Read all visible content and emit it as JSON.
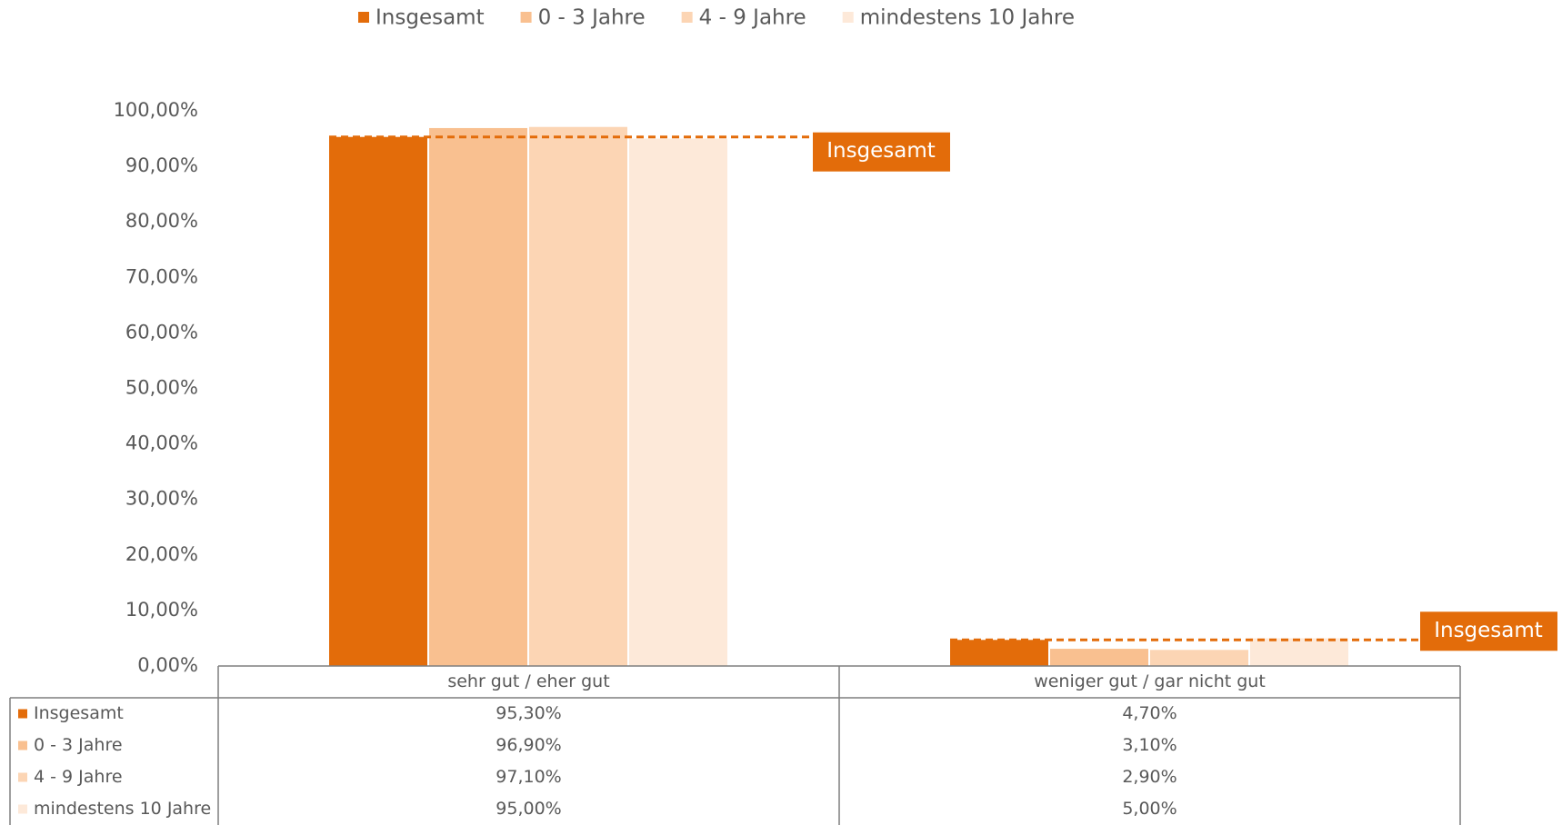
{
  "chart_data": {
    "type": "bar",
    "categories": [
      "sehr gut / eher gut",
      "weniger gut / gar nicht gut"
    ],
    "series": [
      {
        "name": "Insgesamt",
        "color": "#e36c0a",
        "values": [
          95.3,
          4.7
        ],
        "value_labels": [
          "95,30%",
          "4,70%"
        ]
      },
      {
        "name": "0 - 3 Jahre",
        "color": "#f9c090",
        "values": [
          96.9,
          3.1
        ],
        "value_labels": [
          "96,90%",
          "3,10%"
        ]
      },
      {
        "name": "4 - 9 Jahre",
        "color": "#fcd5b4",
        "values": [
          97.1,
          2.9
        ],
        "value_labels": [
          "97,10%",
          "2,90%"
        ]
      },
      {
        "name": "mindestens 10 Jahre",
        "color": "#fde9d9",
        "values": [
          95.0,
          5.0
        ],
        "value_labels": [
          "95,00%",
          "5,00%"
        ]
      }
    ],
    "ylim": [
      0,
      100
    ],
    "yticks": [
      {
        "value": 0,
        "label": "0,00%"
      },
      {
        "value": 10,
        "label": "10,00%"
      },
      {
        "value": 20,
        "label": "20,00%"
      },
      {
        "value": 30,
        "label": "30,00%"
      },
      {
        "value": 40,
        "label": "40,00%"
      },
      {
        "value": 50,
        "label": "50,00%"
      },
      {
        "value": 60,
        "label": "60,00%"
      },
      {
        "value": 70,
        "label": "70,00%"
      },
      {
        "value": 80,
        "label": "80,00%"
      },
      {
        "value": 90,
        "label": "90,00%"
      },
      {
        "value": 100,
        "label": "100,00%"
      }
    ],
    "legend": "top",
    "data_table": true
  }
}
